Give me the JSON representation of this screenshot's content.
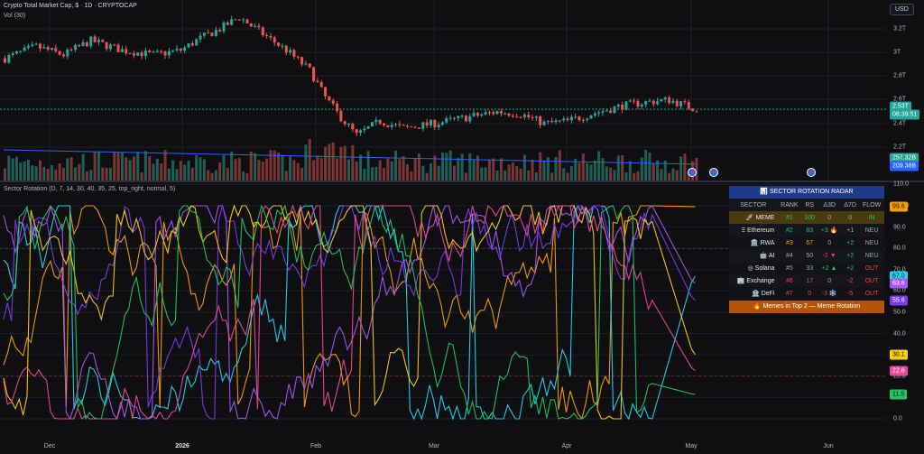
{
  "main": {
    "title": "Crypto Total Market Cap, $ · 1D · CRYPTOCAP",
    "volume_label": "Vol (30)",
    "currency": "USD",
    "price_axis": [
      "3.2T",
      "3T",
      "2.8T",
      "2.6T",
      "2.4T",
      "2.2T"
    ],
    "price_tag": "2.53T",
    "price_timer": "08:39:51",
    "vol_tag_1": "257.32B",
    "vol_tag_2": "209.38B",
    "price_range": [
      2.05,
      3.3
    ]
  },
  "indicator": {
    "title": "Sector Rotation (D, 7, 14, 30, 40, 35, 25, top_right, normal, 5)",
    "axis": [
      "110.0",
      "100.0",
      "90.0",
      "80.0",
      "70.0",
      "60.0",
      "50.0",
      "40.0",
      "30.0",
      "20.0",
      "10.0",
      "0.0"
    ],
    "tags": [
      {
        "value": "99.6",
        "color": "#f59e0b",
        "text_color": "#111"
      },
      {
        "value": "67.0",
        "color": "#22d3ee",
        "text_color": "#111"
      },
      {
        "value": "63.6",
        "color": "#a855f7",
        "text_color": "#fff"
      },
      {
        "value": "55.6",
        "color": "#7c3aed",
        "text_color": "#fff"
      },
      {
        "value": "30.1",
        "color": "#facc15",
        "text_color": "#111"
      },
      {
        "value": "22.6",
        "color": "#ec4899",
        "text_color": "#fff"
      },
      {
        "value": "11.5",
        "color": "#22c55e",
        "text_color": "#111"
      }
    ]
  },
  "radar": {
    "title": "📊 SECTOR ROTATION RADAR",
    "columns": [
      "SECTOR",
      "RANK",
      "RS",
      "Δ3D",
      "Δ7D",
      "FLOW"
    ],
    "rows": [
      {
        "sector": "🚀 MEME",
        "rank": "#1",
        "rs": "100",
        "d3": "0",
        "d7": "0",
        "flow": "IN",
        "rank_color": "#22c55e",
        "rs_color": "#22c55e",
        "d3_color": "#9ca3af",
        "d7_color": "#9ca3af",
        "flow_color": "#22c55e",
        "highlight": true
      },
      {
        "sector": "Ξ Ethereum",
        "rank": "#2",
        "rs": "83",
        "d3": "+3 🔥",
        "d7": "+1",
        "flow": "NEU",
        "rank_color": "#22c55e",
        "rs_color": "#22c55e",
        "d3_color": "#22c55e",
        "d7_color": "#f59e0b",
        "flow_color": "#9ca3af",
        "highlight": false
      },
      {
        "sector": "🏛️ RWA",
        "rank": "#3",
        "rs": "67",
        "d3": "0",
        "d7": "+2",
        "flow": "NEU",
        "rank_color": "#f59e0b",
        "rs_color": "#f59e0b",
        "d3_color": "#9ca3af",
        "d7_color": "#22c55e",
        "flow_color": "#9ca3af",
        "highlight": false
      },
      {
        "sector": "🤖 AI",
        "rank": "#4",
        "rs": "50",
        "d3": "-2 ▼",
        "d7": "+2",
        "flow": "NEU",
        "rank_color": "#9ca3af",
        "rs_color": "#9ca3af",
        "d3_color": "#ef4444",
        "d7_color": "#22c55e",
        "flow_color": "#9ca3af",
        "highlight": false
      },
      {
        "sector": "◎ Solana",
        "rank": "#5",
        "rs": "33",
        "d3": "+2 ▲",
        "d7": "+2",
        "flow": "OUT",
        "rank_color": "#9ca3af",
        "rs_color": "#9ca3af",
        "d3_color": "#22c55e",
        "d7_color": "#22c55e",
        "flow_color": "#ef4444",
        "highlight": false
      },
      {
        "sector": "🏢 Exchange",
        "rank": "#6",
        "rs": "17",
        "d3": "0",
        "d7": "-2",
        "flow": "OUT",
        "rank_color": "#ef4444",
        "rs_color": "#ef4444",
        "d3_color": "#9ca3af",
        "d7_color": "#ef4444",
        "flow_color": "#ef4444",
        "highlight": false
      },
      {
        "sector": "🏦 DeFi",
        "rank": "#7",
        "rs": "0",
        "d3": "-3 ❄️",
        "d7": "-5",
        "flow": "OUT",
        "rank_color": "#ef4444",
        "rs_color": "#ef4444",
        "d3_color": "#ef4444",
        "d7_color": "#ef4444",
        "flow_color": "#ef4444",
        "highlight": false
      }
    ],
    "footer": "🔥 Memes in Top 2 — Meme Rotation"
  },
  "time_axis": [
    {
      "label": "Dec",
      "bold": false
    },
    {
      "label": "2026",
      "bold": true
    },
    {
      "label": "Feb",
      "bold": false
    },
    {
      "label": "Mar",
      "bold": false
    },
    {
      "label": "Apr",
      "bold": false
    },
    {
      "label": "May",
      "bold": false
    },
    {
      "label": "Jun",
      "bold": false
    }
  ],
  "colors": {
    "up": "#26a69a",
    "down": "#ef5350",
    "ma": "#2962ff",
    "grid": "#1c1f26"
  }
}
